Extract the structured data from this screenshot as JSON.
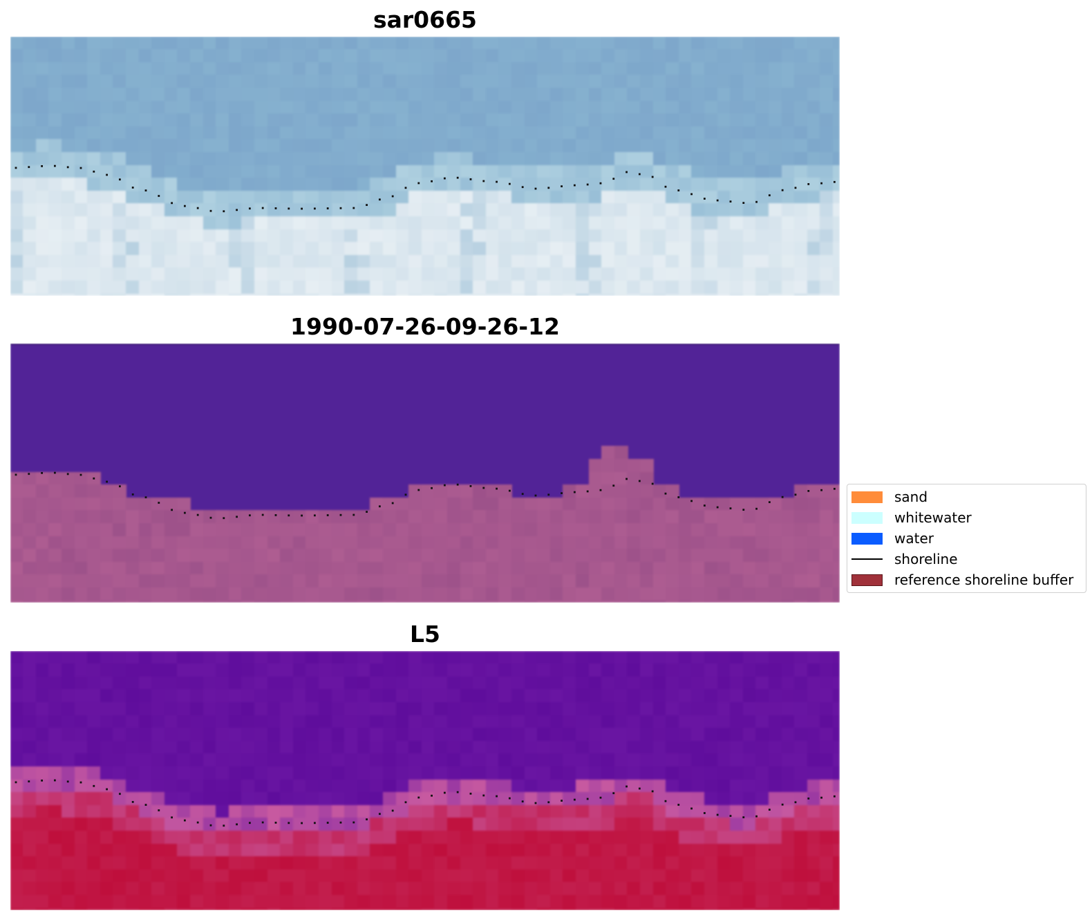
{
  "panels": [
    {
      "title": "sar0665",
      "style": "sar"
    },
    {
      "title": "1990-07-26-09-26-12",
      "style": "classified"
    },
    {
      "title": "L5",
      "style": "l5"
    }
  ],
  "legend": {
    "items": [
      {
        "label": "sand",
        "kind": "patch",
        "color": "#ff8c3a"
      },
      {
        "label": "whitewater",
        "kind": "patch",
        "color": "#ccffff"
      },
      {
        "label": "water",
        "kind": "patch",
        "color": "#0a5cff"
      },
      {
        "label": "shoreline",
        "kind": "line",
        "color": "#000000"
      },
      {
        "label": "reference shoreline buffer",
        "kind": "patch",
        "color": "#a0313a",
        "edge": "#5a1418"
      }
    ]
  },
  "colors": {
    "classified_water": "#522397",
    "classified_buffer": "#a8598f",
    "sar_water": "#86b1cf",
    "sar_sand": "#e6eef3",
    "l5_water": "#5f0d9c",
    "l5_land": "#bf0f3c"
  }
}
